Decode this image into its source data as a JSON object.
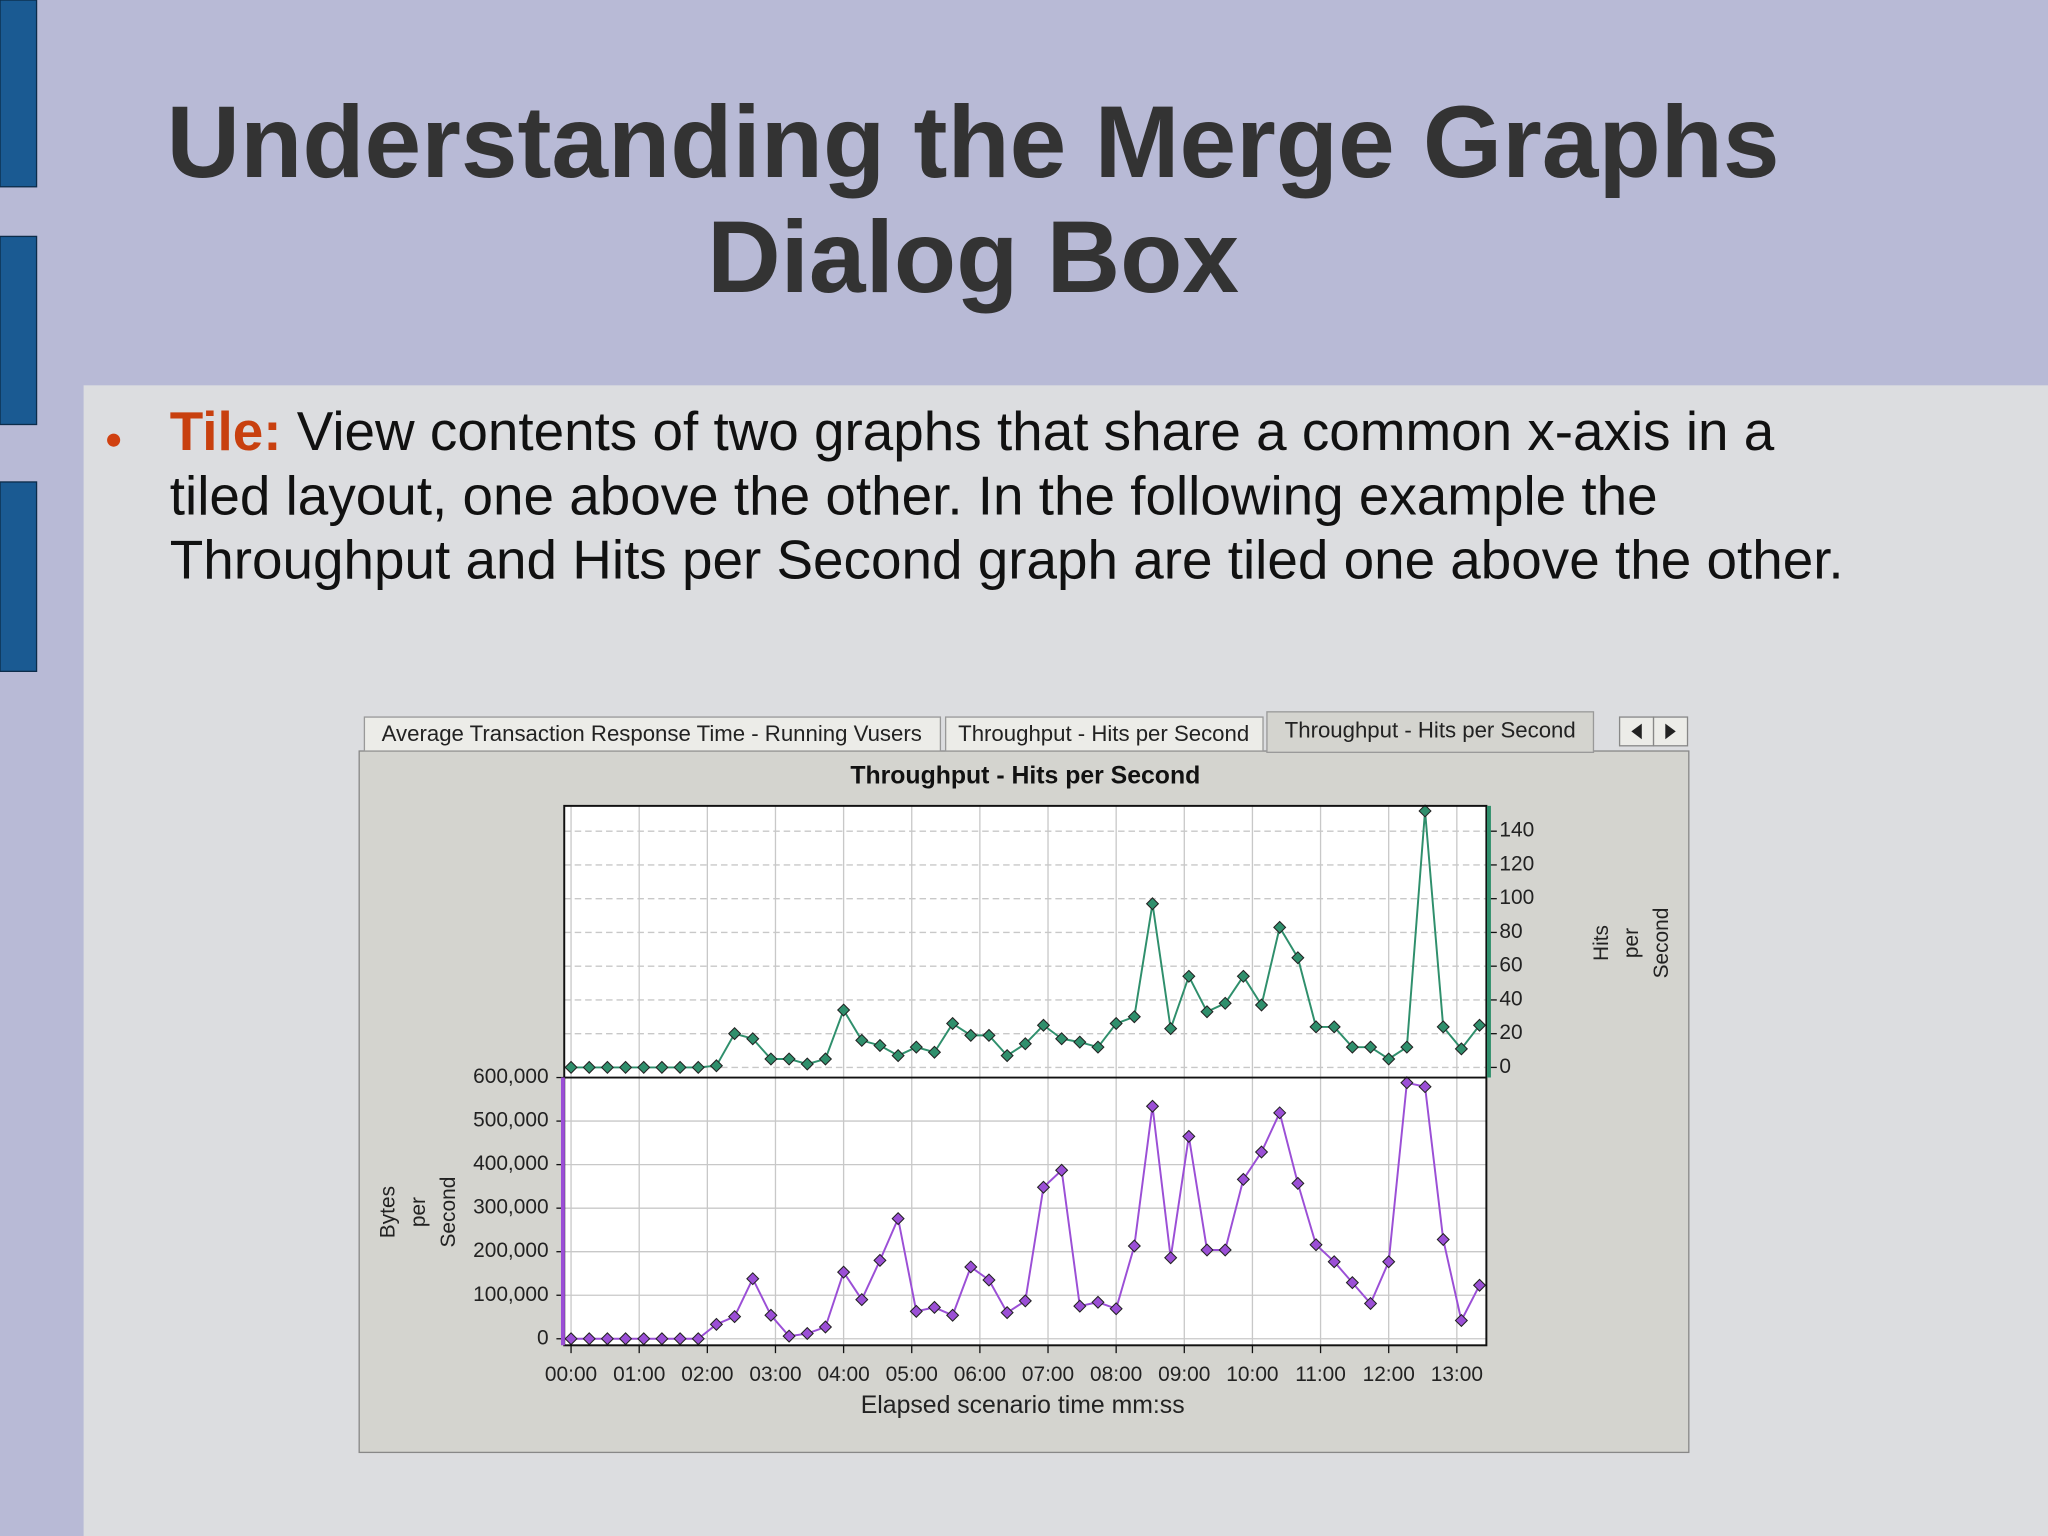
{
  "slide": {
    "title": [
      "Understanding the Merge Graphs",
      "Dialog Box"
    ],
    "bullet_label": "Tile:",
    "bullet_lines": [
      "View contents of two graphs that share a common x-axis in a",
      "tiled layout, one above the other. In the following example the",
      "Throughput and Hits per Second graph are tiled one above the other."
    ]
  },
  "tabs": [
    "Average Transaction Response Time - Running Vusers",
    "Throughput - Hits per Second",
    "Throughput - Hits per Second"
  ],
  "chart_data": {
    "type": "line",
    "title": "Throughput - Hits per Second",
    "xlabel": "Elapsed scenario time mm:ss",
    "ylabel": [
      "Bytes",
      "per",
      "Second"
    ],
    "y2label": [
      "Hits",
      "per",
      "Second"
    ],
    "x": [
      0,
      16,
      32,
      48,
      64,
      80,
      96,
      112,
      128,
      144,
      160,
      176,
      192,
      208,
      224,
      240,
      256,
      272,
      288,
      304,
      320,
      336,
      352,
      368,
      384,
      400,
      416,
      432,
      448,
      464,
      480,
      496,
      512,
      528,
      544,
      560,
      576,
      592,
      608,
      624,
      640,
      656,
      672,
      688,
      704,
      720,
      736,
      752,
      768,
      784,
      800
    ],
    "xlim": [
      -6,
      806
    ],
    "xticks": [
      {
        "value": 0,
        "label": "00:00"
      },
      {
        "value": 60,
        "label": "01:00"
      },
      {
        "value": 120,
        "label": "02:00"
      },
      {
        "value": 180,
        "label": "03:00"
      },
      {
        "value": 240,
        "label": "04:00"
      },
      {
        "value": 300,
        "label": "05:00"
      },
      {
        "value": 360,
        "label": "06:00"
      },
      {
        "value": 420,
        "label": "07:00"
      },
      {
        "value": 480,
        "label": "08:00"
      },
      {
        "value": 540,
        "label": "09:00"
      },
      {
        "value": 600,
        "label": "10:00"
      },
      {
        "value": 660,
        "label": "11:00"
      },
      {
        "value": 720,
        "label": "12:00"
      },
      {
        "value": 780,
        "label": "13:00"
      }
    ],
    "ylim": [
      -15000,
      600000
    ],
    "yticks": [
      0,
      {
        "value": 100000,
        "label": "100,000"
      },
      {
        "value": 200000,
        "label": "200,000"
      },
      {
        "value": 300000,
        "label": "300,000"
      },
      {
        "value": 400000,
        "label": "400,000"
      },
      {
        "value": 500000,
        "label": "500,000"
      },
      {
        "value": 600000,
        "label": "600,000"
      }
    ],
    "y2lim": [
      -6,
      155
    ],
    "y2ticks": [
      0,
      20,
      40,
      60,
      80,
      100,
      120,
      140
    ],
    "grid": true,
    "series": [
      {
        "color": "#2f8f6c",
        "axis": "y2",
        "values": [
          0,
          0,
          0,
          0,
          0,
          0,
          0,
          0,
          1,
          20,
          17,
          5,
          5,
          2,
          5,
          34,
          16,
          13,
          7,
          12,
          9,
          26,
          19,
          19,
          7,
          14,
          25,
          17,
          15,
          12,
          26,
          30,
          97,
          23,
          54,
          33,
          38,
          54,
          37,
          83,
          65,
          24,
          24,
          12,
          12,
          5,
          12,
          152,
          24,
          11,
          25
        ]
      },
      {
        "color": "#9b4fd6",
        "axis": "y",
        "values": [
          0,
          0,
          0,
          0,
          0,
          0,
          0,
          0,
          33000,
          51000,
          138000,
          54000,
          6000,
          12000,
          27000,
          153000,
          90000,
          180000,
          276000,
          63000,
          72000,
          54000,
          165000,
          135000,
          60000,
          87000,
          348000,
          387000,
          75000,
          84000,
          69000,
          213000,
          534000,
          186000,
          465000,
          204000,
          204000,
          366000,
          429000,
          519000,
          357000,
          216000,
          177000,
          129000,
          81000,
          177000,
          588000,
          579000,
          228000,
          42000,
          123000
        ]
      }
    ]
  }
}
